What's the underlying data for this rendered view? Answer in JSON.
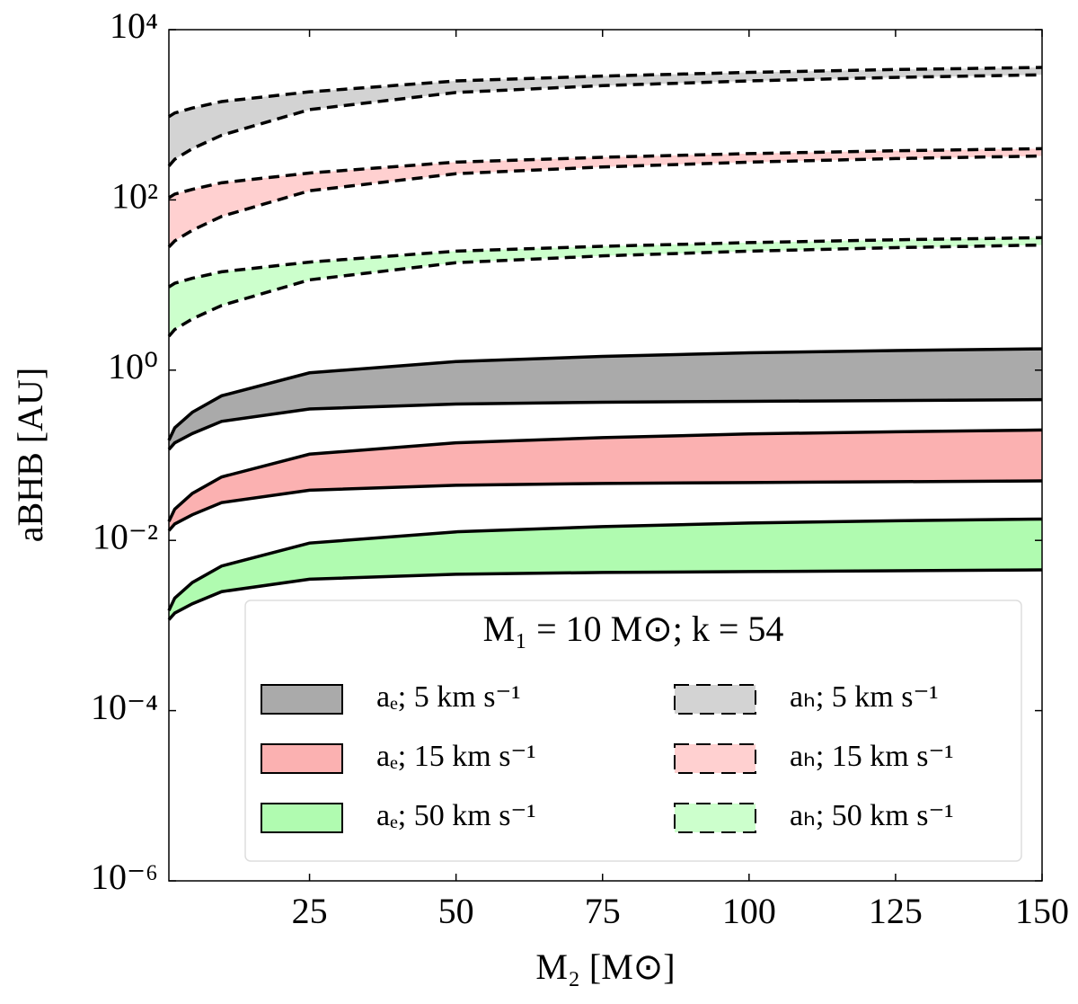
{
  "chart_data": {
    "type": "band",
    "x_label": "M₂ [M⊙]",
    "y_label": "aBHB [AU]",
    "legend_title": "M₁ = 10 M⊙; k = 54",
    "legend": "lower right",
    "log_y": true,
    "xlim": [
      1,
      150
    ],
    "xticks": [
      25,
      50,
      75,
      100,
      125,
      150
    ],
    "ylim": [
      1e-06,
      10000
    ],
    "yticks": [
      {
        "value": 1e-06,
        "label": "10⁻⁶"
      },
      {
        "value": 0.0001,
        "label": "10⁻⁴"
      },
      {
        "value": 0.01,
        "label": "10⁻²"
      },
      {
        "value": 1,
        "label": "10⁰"
      },
      {
        "value": 100,
        "label": "10²"
      },
      {
        "value": 10000,
        "label": "10⁴"
      }
    ],
    "x": [
      1,
      2,
      5,
      10,
      25,
      50,
      75,
      100,
      125,
      150
    ],
    "series": [
      {
        "name": "aₑ; 5 km s⁻¹",
        "color": "#aaaaaa",
        "style": "solid",
        "upper": [
          0.15,
          0.21,
          0.32,
          0.5,
          0.93,
          1.26,
          1.45,
          1.6,
          1.7,
          1.78
        ],
        "lower": [
          0.117,
          0.14,
          0.18,
          0.25,
          0.35,
          0.4,
          0.42,
          0.43,
          0.44,
          0.45
        ]
      },
      {
        "name": "aₑ; 15 km s⁻¹",
        "color": "#fbb1b1",
        "style": "solid",
        "upper": [
          0.0167,
          0.0233,
          0.0356,
          0.0556,
          0.103,
          0.14,
          0.161,
          0.178,
          0.189,
          0.198
        ],
        "lower": [
          0.013,
          0.0156,
          0.02,
          0.0278,
          0.0389,
          0.0444,
          0.0467,
          0.0478,
          0.0489,
          0.05
        ]
      },
      {
        "name": "aₑ; 50 km s⁻¹",
        "color": "#b0fbb0",
        "style": "solid",
        "upper": [
          0.0015,
          0.0021,
          0.0032,
          0.005,
          0.0093,
          0.0126,
          0.0145,
          0.016,
          0.017,
          0.0178
        ],
        "lower": [
          0.00117,
          0.0014,
          0.0018,
          0.0025,
          0.0035,
          0.004,
          0.0042,
          0.0043,
          0.0044,
          0.0045
        ]
      },
      {
        "name": "aₕ; 5 km s⁻¹",
        "color": "#d3d3d3",
        "style": "dashed",
        "upper": [
          950,
          1050,
          1200,
          1430,
          1860,
          2500,
          2850,
          3150,
          3400,
          3600
        ],
        "lower": [
          250,
          300,
          400,
          575,
          1150,
          1830,
          2200,
          2500,
          2750,
          2950
        ]
      },
      {
        "name": "aₕ; 15 km s⁻¹",
        "color": "#ffd0d0",
        "style": "dashed",
        "upper": [
          106,
          117,
          133,
          159,
          207,
          278,
          317,
          350,
          378,
          400
        ],
        "lower": [
          28,
          33,
          44,
          64,
          128,
          203,
          244,
          278,
          306,
          328
        ]
      },
      {
        "name": "aₕ; 50 km s⁻¹",
        "color": "#ccffcc",
        "style": "dashed",
        "upper": [
          9.5,
          10.5,
          12,
          14.3,
          18.6,
          25,
          28.5,
          31.5,
          34,
          36
        ],
        "lower": [
          2.5,
          3,
          4,
          5.75,
          11.5,
          18.3,
          22,
          25,
          27.5,
          29.5
        ]
      }
    ]
  }
}
